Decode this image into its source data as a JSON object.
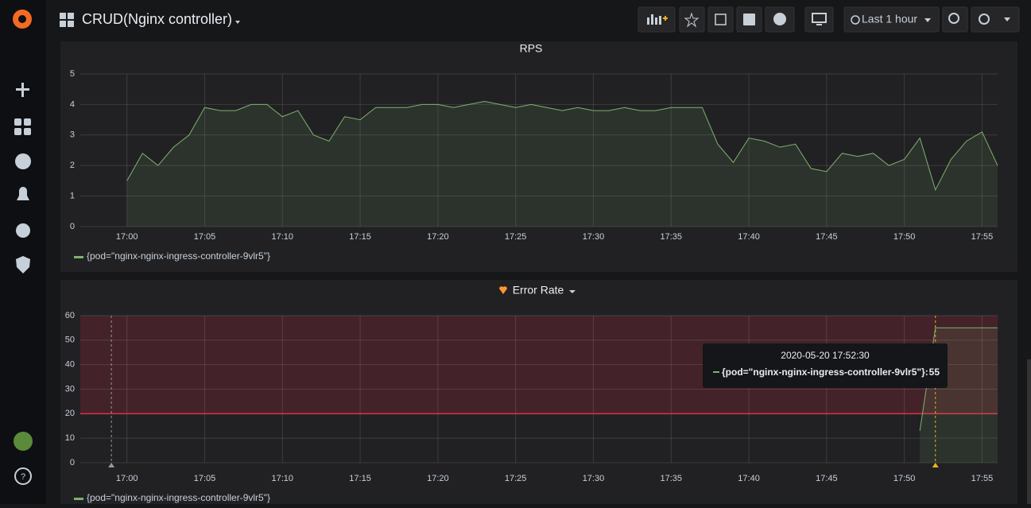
{
  "header": {
    "title": "CRUD(Nginx controller)",
    "time_range": "Last 1 hour"
  },
  "chart_data": [
    {
      "type": "line",
      "title": "RPS",
      "x": [
        "17:00",
        "17:01",
        "17:02",
        "17:03",
        "17:04",
        "17:05",
        "17:06",
        "17:07",
        "17:08",
        "17:09",
        "17:10",
        "17:11",
        "17:12",
        "17:13",
        "17:14",
        "17:15",
        "17:16",
        "17:17",
        "17:18",
        "17:19",
        "17:20",
        "17:21",
        "17:22",
        "17:23",
        "17:24",
        "17:25",
        "17:26",
        "17:27",
        "17:28",
        "17:29",
        "17:30",
        "17:31",
        "17:32",
        "17:33",
        "17:34",
        "17:35",
        "17:36",
        "17:37",
        "17:38",
        "17:39",
        "17:40",
        "17:41",
        "17:42",
        "17:43",
        "17:44",
        "17:45",
        "17:46",
        "17:47",
        "17:48",
        "17:49",
        "17:50",
        "17:51",
        "17:52",
        "17:53",
        "17:54",
        "17:55",
        "17:56"
      ],
      "series": [
        {
          "name": "{pod=\"nginx-nginx-ingress-controller-9vlr5\"}",
          "color": "#7eb26d",
          "values": [
            1.5,
            2.4,
            2.0,
            2.6,
            3.0,
            3.9,
            3.8,
            3.8,
            4.0,
            4.0,
            3.6,
            3.8,
            3.0,
            2.8,
            3.6,
            3.5,
            3.9,
            3.9,
            3.9,
            4.0,
            4.0,
            3.9,
            4.0,
            4.1,
            4.0,
            3.9,
            4.0,
            3.9,
            3.8,
            3.9,
            3.8,
            3.8,
            3.9,
            3.8,
            3.8,
            3.9,
            3.9,
            3.9,
            2.7,
            2.1,
            2.9,
            2.8,
            2.6,
            2.7,
            1.9,
            1.8,
            2.4,
            2.3,
            2.4,
            2.0,
            2.2,
            2.9,
            1.2,
            2.2,
            2.8,
            3.1,
            2.0
          ]
        }
      ],
      "xlim": [
        "16:57",
        "17:56"
      ],
      "xticks": [
        "17:00",
        "17:05",
        "17:10",
        "17:15",
        "17:20",
        "17:25",
        "17:30",
        "17:35",
        "17:40",
        "17:45",
        "17:50",
        "17:55"
      ],
      "ylim": [
        0,
        5
      ],
      "yticks": [
        0,
        1,
        2,
        3,
        4,
        5
      ],
      "grid": true
    },
    {
      "type": "line",
      "title": "Error Rate",
      "x": [
        "17:51",
        "17:52",
        "17:53",
        "17:54",
        "17:55",
        "17:56"
      ],
      "series": [
        {
          "name": "{pod=\"nginx-nginx-ingress-controller-9vlr5\"}",
          "color": "#7eb26d",
          "values": [
            13,
            55,
            55,
            55,
            55,
            55
          ]
        }
      ],
      "threshold": 20,
      "annotations": [
        "16:59",
        "17:52"
      ],
      "xlim": [
        "16:57",
        "17:56"
      ],
      "xticks": [
        "17:00",
        "17:05",
        "17:10",
        "17:15",
        "17:20",
        "17:25",
        "17:30",
        "17:35",
        "17:40",
        "17:45",
        "17:50",
        "17:55"
      ],
      "ylim": [
        0,
        60
      ],
      "yticks": [
        0,
        10,
        20,
        30,
        40,
        50,
        60
      ],
      "grid": true
    }
  ],
  "tooltip": {
    "time": "2020-05-20 17:52:30",
    "label": "{pod=\"nginx-nginx-ingress-controller-9vlr5\"}:",
    "value": 55
  }
}
